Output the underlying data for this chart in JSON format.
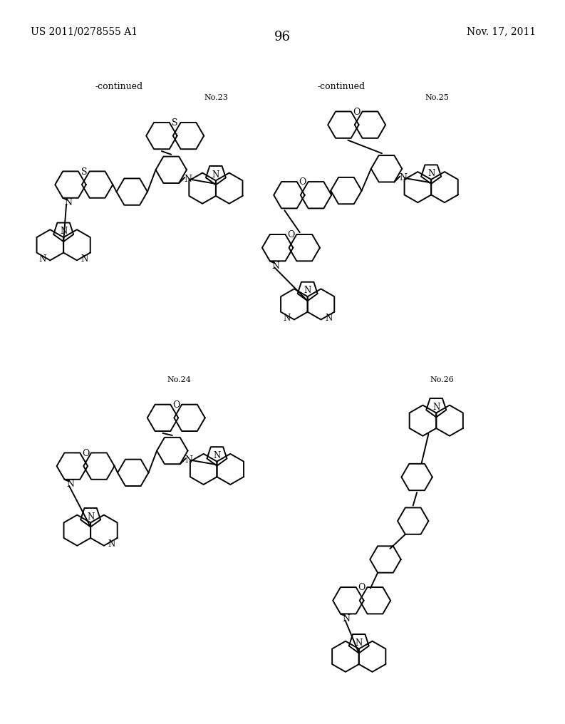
{
  "background_color": "#ffffff",
  "header_left": "US 2011/0278555 A1",
  "header_right": "Nov. 17, 2011",
  "page_number": "96",
  "lw": 1.4,
  "R": 28,
  "Rp": 19
}
